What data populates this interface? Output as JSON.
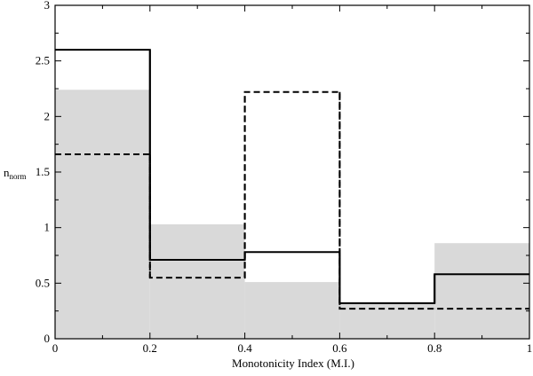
{
  "chart_data": {
    "type": "histogram",
    "title": "",
    "xlabel": "Monotonicity Index (M.I.)",
    "ylabel": "n",
    "ylabel_subscript": "norm",
    "xlim": [
      0,
      1
    ],
    "ylim": [
      0,
      3
    ],
    "x_ticks": [
      "0",
      "0.2",
      "0.4",
      "0.6",
      "0.8",
      "1"
    ],
    "y_ticks": [
      "0",
      "0.5",
      "1",
      "1.5",
      "2",
      "2.5",
      "3"
    ],
    "bin_edges": [
      0,
      0.2,
      0.4,
      0.6,
      0.8,
      1.0
    ],
    "grid": false,
    "legend": "none",
    "series": [
      {
        "style": "filled",
        "color": "#d9d9d9",
        "values": [
          2.24,
          1.03,
          0.51,
          0.32,
          0.86
        ]
      },
      {
        "style": "solid-step",
        "color": "#000000",
        "values": [
          2.6,
          0.71,
          0.78,
          0.32,
          0.58
        ]
      },
      {
        "style": "dashed-step",
        "color": "#000000",
        "values": [
          1.66,
          0.55,
          2.22,
          0.27,
          0.27
        ]
      }
    ]
  }
}
